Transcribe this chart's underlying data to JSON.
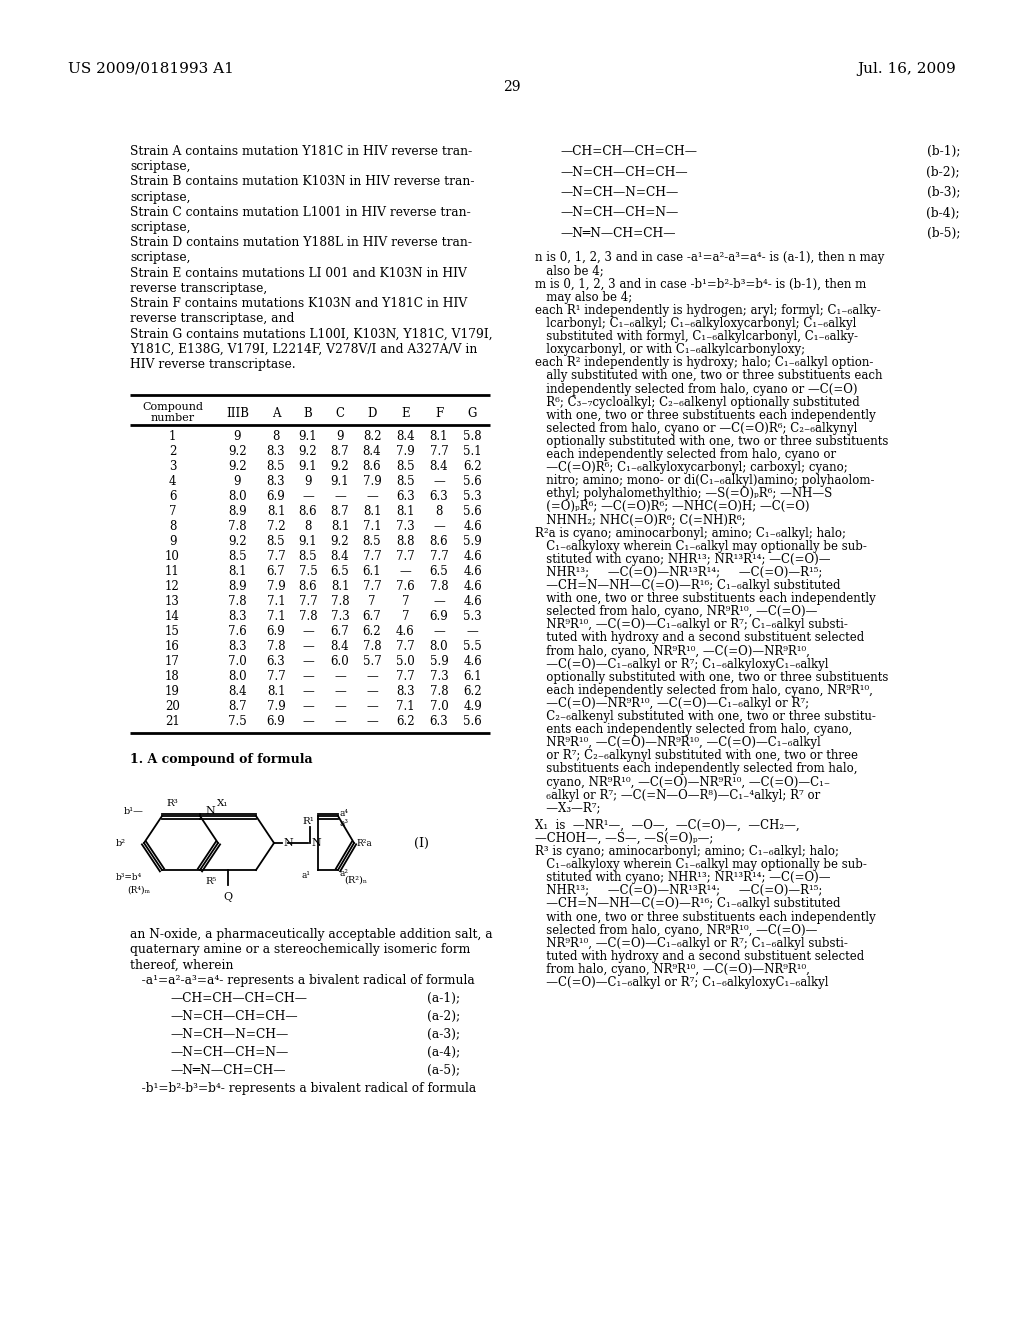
{
  "background_color": "#ffffff",
  "header_left": "US 2009/0181993 A1",
  "header_right": "Jul. 16, 2009",
  "page_num": "29",
  "strain_lines": [
    "Strain A contains mutation Y181C in HIV reverse tran-",
    "scriptase,",
    "Strain B contains mutation K103N in HIV reverse tran-",
    "scriptase,",
    "Strain C contains mutation L1001 in HIV reverse tran-",
    "scriptase,",
    "Strain D contains mutation Y188L in HIV reverse tran-",
    "scriptase,",
    "Strain E contains mutations LI 001 and K103N in HIV",
    "reverse transcriptase,",
    "Strain F contains mutations K103N and Y181C in HIV",
    "reverse transcriptase, and",
    "Strain G contains mutations L100I, K103N, Y181C, V179I,",
    "Y181C, E138G, V179I, L2214F, V278V/I and A327A/V in",
    "HIV reverse transcriptase."
  ],
  "table_rows": [
    [
      "1",
      "9",
      "8",
      "9.1",
      "9",
      "8.2",
      "8.4",
      "8.1",
      "5.8"
    ],
    [
      "2",
      "9.2",
      "8.3",
      "9.2",
      "8.7",
      "8.4",
      "7.9",
      "7.7",
      "5.1"
    ],
    [
      "3",
      "9.2",
      "8.5",
      "9.1",
      "9.2",
      "8.6",
      "8.5",
      "8.4",
      "6.2"
    ],
    [
      "4",
      "9",
      "8.3",
      "9",
      "9.1",
      "7.9",
      "8.5",
      "—",
      "5.6"
    ],
    [
      "6",
      "8.0",
      "6.9",
      "—",
      "—",
      "—",
      "6.3",
      "6.3",
      "5.3"
    ],
    [
      "7",
      "8.9",
      "8.1",
      "8.6",
      "8.7",
      "8.1",
      "8.1",
      "8",
      "5.6"
    ],
    [
      "8",
      "7.8",
      "7.2",
      "8",
      "8.1",
      "7.1",
      "7.3",
      "—",
      "4.6"
    ],
    [
      "9",
      "9.2",
      "8.5",
      "9.1",
      "9.2",
      "8.5",
      "8.8",
      "8.6",
      "5.9"
    ],
    [
      "10",
      "8.5",
      "7.7",
      "8.5",
      "8.4",
      "7.7",
      "7.7",
      "7.7",
      "4.6"
    ],
    [
      "11",
      "8.1",
      "6.7",
      "7.5",
      "6.5",
      "6.1",
      "—",
      "6.5",
      "4.6"
    ],
    [
      "12",
      "8.9",
      "7.9",
      "8.6",
      "8.1",
      "7.7",
      "7.6",
      "7.8",
      "4.6"
    ],
    [
      "13",
      "7.8",
      "7.1",
      "7.7",
      "7.8",
      "7",
      "7",
      "—",
      "4.6"
    ],
    [
      "14",
      "8.3",
      "7.1",
      "7.8",
      "7.3",
      "6.7",
      "7",
      "6.9",
      "5.3"
    ],
    [
      "15",
      "7.6",
      "6.9",
      "—",
      "6.7",
      "6.2",
      "4.6",
      "—",
      "—"
    ],
    [
      "16",
      "8.3",
      "7.8",
      "—",
      "8.4",
      "7.8",
      "7.7",
      "8.0",
      "5.5"
    ],
    [
      "17",
      "7.0",
      "6.3",
      "—",
      "6.0",
      "5.7",
      "5.0",
      "5.9",
      "4.6"
    ],
    [
      "18",
      "8.0",
      "7.7",
      "—",
      "—",
      "—",
      "7.7",
      "7.3",
      "6.1"
    ],
    [
      "19",
      "8.4",
      "8.1",
      "—",
      "—",
      "—",
      "8.3",
      "7.8",
      "6.2"
    ],
    [
      "20",
      "8.7",
      "7.9",
      "—",
      "—",
      "—",
      "7.1",
      "7.0",
      "4.9"
    ],
    [
      "21",
      "7.5",
      "6.9",
      "—",
      "—",
      "—",
      "6.2",
      "6.3",
      "5.6"
    ]
  ],
  "right_b_formulas": [
    [
      "—CH=CH—CH=CH—",
      "(b-1);"
    ],
    [
      "—N=CH—CH=CH—",
      "(b-2);"
    ],
    [
      "—N=CH—N=CH—",
      "(b-3);"
    ],
    [
      "—N=CH—CH=N—",
      "(b-4);"
    ],
    [
      "—N═N—CH=CH—",
      "(b-5);"
    ]
  ],
  "right_para_lines": [
    [
      "n is 0, 1, 2, 3 and in case -a¹=a²-a³=a⁴- is (a-1), then n may",
      false
    ],
    [
      "   also be 4;",
      false
    ],
    [
      "m is 0, 1, 2, 3 and in case -b¹=b²-b³=b⁴- is (b-1), then m",
      false
    ],
    [
      "   may also be 4;",
      false
    ],
    [
      "each R¹ independently is hydrogen; aryl; formyl; C₁₋₆alky-",
      false
    ],
    [
      "   lcarbonyl; C₁₋₆alkyl; C₁₋₆alkyloxycarbonyl; C₁₋₆alkyl",
      false
    ],
    [
      "   substituted with formyl, C₁₋₆alkylcarbonyl, C₁₋₆alky-",
      false
    ],
    [
      "   loxycarbonyl, or with C₁₋₆alkylcarbonyloxy;",
      false
    ],
    [
      "each R² independently is hydroxy; halo; C₁₋₆alkyl option-",
      false
    ],
    [
      "   ally substituted with one, two or three substituents each",
      false
    ],
    [
      "   independently selected from halo, cyano or —C(=O)",
      false
    ],
    [
      "   R⁶; C₃₋₇cycloalkyl; C₂₋₆alkenyl optionally substituted",
      false
    ],
    [
      "   with one, two or three substituents each independently",
      false
    ],
    [
      "   selected from halo, cyano or —C(=O)R⁶; C₂₋₆alkynyl",
      false
    ],
    [
      "   optionally substituted with one, two or three substituents",
      false
    ],
    [
      "   each independently selected from halo, cyano or",
      false
    ],
    [
      "   —C(=O)R⁶; C₁₋₆alkyloxycarbonyl; carboxyl; cyano;",
      false
    ],
    [
      "   nitro; amino; mono- or di(C₁₋₆alkyl)amino; polyhaolom-",
      false
    ],
    [
      "   ethyl; polyhalomethylthio; —S(=O)ₚR⁶; —NH—S",
      false
    ],
    [
      "   (=O)ₚR⁶; —C(=O)R⁶; —NHC(=O)H; —C(=O)",
      false
    ],
    [
      "   NHNH₂; NHC(=O)R⁶; C(=NH)R⁶;",
      false
    ],
    [
      "R²a is cyano; aminocarbonyl; amino; C₁₋₆alkyl; halo;",
      false
    ],
    [
      "   C₁₋₆alkyloxy wherein C₁₋₆alkyl may optionally be sub-",
      false
    ],
    [
      "   stituted with cyano; NHR¹³; NR¹³R¹⁴; —C(=O)—",
      false
    ],
    [
      "   NHR¹³;     —C(=O)—NR¹³R¹⁴;     —C(=O)—R¹⁵;",
      false
    ],
    [
      "   —CH=N—NH—C(=O)—R¹⁶; C₁₋₆alkyl substituted",
      false
    ],
    [
      "   with one, two or three substituents each independently",
      false
    ],
    [
      "   selected from halo, cyano, NR⁹R¹⁰, —C(=O)—",
      false
    ],
    [
      "   NR⁹R¹⁰, —C(=O)—C₁₋₆alkyl or R⁷; C₁₋₆alkyl substi-",
      false
    ],
    [
      "   tuted with hydroxy and a second substituent selected",
      false
    ],
    [
      "   from halo, cyano, NR⁹R¹⁰, —C(=O)—NR⁹R¹⁰,",
      false
    ],
    [
      "   —C(=O)—C₁₋₆alkyl or R⁷; C₁₋₆alkyloxyC₁₋₆alkyl",
      false
    ],
    [
      "   optionally substituted with one, two or three substituents",
      false
    ],
    [
      "   each independently selected from halo, cyano, NR⁹R¹⁰,",
      false
    ],
    [
      "   —C(=O)—NR⁹R¹⁰, —C(=O)—C₁₋₆alkyl or R⁷;",
      false
    ],
    [
      "   C₂₋₆alkenyl substituted with one, two or three substitu-",
      false
    ],
    [
      "   ents each independently selected from halo, cyano,",
      false
    ],
    [
      "   NR⁹R¹⁰, —C(=O)—NR⁹R¹⁰, —C(=O)—C₁₋₆alkyl",
      false
    ],
    [
      "   or R⁷; C₂₋₆alkynyl substituted with one, two or three",
      false
    ],
    [
      "   substituents each independently selected from halo,",
      false
    ],
    [
      "   cyano, NR⁹R¹⁰, —C(=O)—NR⁹R¹⁰, —C(=O)—C₁₋",
      false
    ],
    [
      "   ₆alkyl or R⁷; —C(=N—O—R⁸)—C₁₋⁴alkyl; R⁷ or",
      false
    ],
    [
      "   —X₃—R⁷;",
      false
    ]
  ],
  "right_x1_lines": [
    "X₁  is  —NR¹—,  —O—,  —C(=O)—,  —CH₂—,",
    "—CHOH—, —S—, —S(=O)ₚ—;",
    "R³ is cyano; aminocarbonyl; amino; C₁₋₆alkyl; halo;",
    "   C₁₋₆alkyloxy wherein C₁₋₆alkyl may optionally be sub-",
    "   stituted with cyano; NHR¹³; NR¹³R¹⁴; —C(=O)—",
    "   NHR¹³;     —C(=O)—NR¹³R¹⁴;     —C(=O)—R¹⁵;",
    "   —CH=N—NH—C(=O)—R¹⁶; C₁₋₆alkyl substituted",
    "   with one, two or three substituents each independently",
    "   selected from halo, cyano, NR⁹R¹⁰, —C(=O)—",
    "   NR⁹R¹⁰, —C(=O)—C₁₋₆alkyl or R⁷; C₁₋₆alkyl substi-",
    "   tuted with hydroxy and a second substituent selected",
    "   from halo, cyano, NR⁹R¹⁰, —C(=O)—NR⁹R¹⁰,",
    "   —C(=O)—C₁₋₆alkyl or R⁷; C₁₋₆alkyloxyC₁₋₆alkyl"
  ],
  "left_a_formulas": [
    [
      "—CH=CH—CH=CH—",
      "(a-1);"
    ],
    [
      "—N=CH—CH=CH—",
      "(a-2);"
    ],
    [
      "—N=CH—N=CH—",
      "(a-3);"
    ],
    [
      "—N=CH—CH=N—",
      "(a-4);"
    ],
    [
      "—N═N—CH=CH—",
      "(a-5);"
    ]
  ]
}
